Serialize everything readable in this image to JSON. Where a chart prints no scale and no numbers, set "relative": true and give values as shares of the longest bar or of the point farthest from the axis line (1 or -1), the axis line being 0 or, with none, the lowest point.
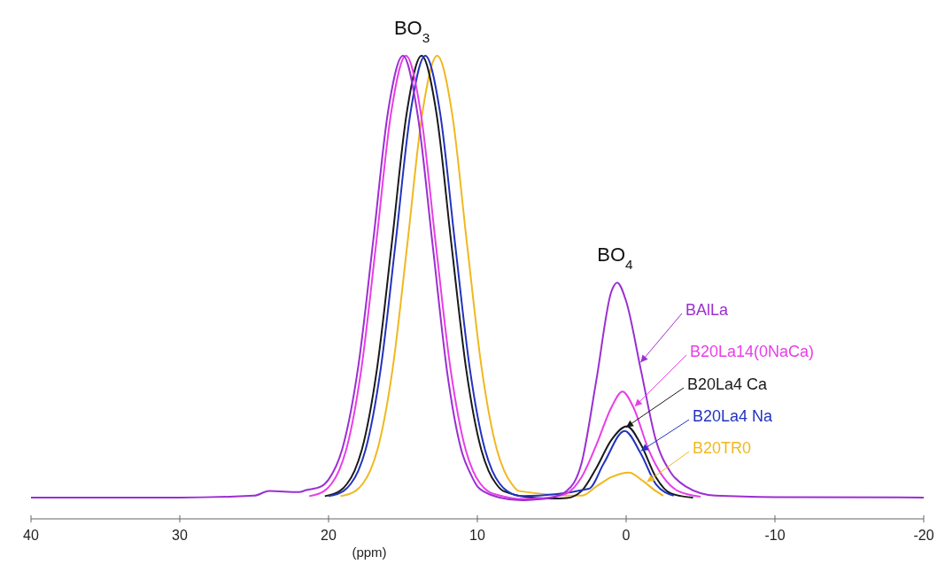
{
  "chart_data": {
    "type": "line",
    "relative": true,
    "xlabel": "(ppm)",
    "xlim": [
      40,
      -20
    ],
    "xticks": [
      40,
      30,
      20,
      10,
      0,
      -10,
      -20
    ],
    "grid": false,
    "legend": "right",
    "marker": "none",
    "line_style": "solid",
    "annotations": [
      {
        "text": "BO$_{3}$",
        "x": 14.4,
        "y": 1
      },
      {
        "text": "BO$_{4}$",
        "x": 0.75,
        "y": 0.51
      }
    ],
    "series": [
      {
        "name": "BAlLa",
        "color": "#9b2fd1",
        "x": [
          40,
          30,
          25,
          24,
          22,
          21.5,
          20.5,
          20,
          19,
          18,
          17,
          16,
          15,
          14,
          13,
          12,
          11,
          10.5,
          10,
          9.5,
          8.5,
          7,
          6,
          5,
          4,
          3,
          2,
          1,
          0.6,
          0,
          -1,
          -2,
          -3,
          -4,
          -6,
          -10,
          -20
        ],
        "values": [
          0.046,
          0.046,
          0.05,
          0.06,
          0.058,
          0.062,
          0.07,
          0.085,
          0.16,
          0.33,
          0.6,
          0.88,
          1.0,
          0.87,
          0.59,
          0.31,
          0.14,
          0.1,
          0.07,
          0.058,
          0.046,
          0.04,
          0.042,
          0.046,
          0.06,
          0.12,
          0.3,
          0.49,
          0.51,
          0.47,
          0.32,
          0.17,
          0.1,
          0.07,
          0.05,
          0.047,
          0.046
        ]
      },
      {
        "name": "B20La14(0NaCa)",
        "color": "#e83ee8",
        "x": [
          21.3,
          20.3,
          19.8,
          19.3,
          18.8,
          17.8,
          16.8,
          15.8,
          14.8,
          13.8,
          12.8,
          11.8,
          10.8,
          10.3,
          9.8,
          9.3,
          8.3,
          7,
          6,
          5,
          4,
          3,
          2,
          1,
          0.25,
          -0.5,
          -1.5,
          -2.5,
          -3.5,
          -5
        ],
        "values": [
          0.049,
          0.06,
          0.076,
          0.104,
          0.151,
          0.323,
          0.595,
          0.876,
          1.0,
          0.876,
          0.595,
          0.323,
          0.151,
          0.104,
          0.076,
          0.06,
          0.049,
          0.043,
          0.044,
          0.047,
          0.055,
          0.09,
          0.16,
          0.24,
          0.275,
          0.24,
          0.15,
          0.09,
          0.06,
          0.048
        ]
      },
      {
        "name": "B20La4 Ca",
        "color": "#1a1a1a",
        "x": [
          20.25,
          19.25,
          18.75,
          18.25,
          17.75,
          16.75,
          15.75,
          14.75,
          13.75,
          12.75,
          11.75,
          10.75,
          9.75,
          9.25,
          8.75,
          8.25,
          6,
          5,
          4,
          3,
          2,
          1,
          -0.05,
          -1,
          -2,
          -3,
          -4.5
        ],
        "values": [
          0.049,
          0.06,
          0.076,
          0.104,
          0.151,
          0.323,
          0.595,
          0.876,
          1.0,
          0.876,
          0.595,
          0.323,
          0.151,
          0.104,
          0.076,
          0.06,
          0.045,
          0.044,
          0.045,
          0.06,
          0.11,
          0.17,
          0.2,
          0.16,
          0.09,
          0.055,
          0.046
        ]
      },
      {
        "name": "B20La4 Na",
        "color": "#2233c0",
        "x": [
          20,
          19,
          18.5,
          18,
          17.5,
          16.5,
          15.5,
          14.5,
          13.5,
          12.5,
          11.5,
          10.5,
          9.5,
          9,
          8.5,
          8,
          7,
          2.5,
          1.5,
          0.1,
          -1,
          -2,
          -3.2
        ],
        "values": [
          0.049,
          0.06,
          0.076,
          0.104,
          0.151,
          0.323,
          0.595,
          0.876,
          1.0,
          0.876,
          0.595,
          0.323,
          0.151,
          0.104,
          0.076,
          0.06,
          0.049,
          0.065,
          0.12,
          0.19,
          0.14,
          0.075,
          0.05
        ]
      },
      {
        "name": "B20TR0",
        "color": "#f0b820",
        "x": [
          19.2,
          18.2,
          17.7,
          17.2,
          16.7,
          15.7,
          14.7,
          13.7,
          12.7,
          11.7,
          10.7,
          9.7,
          8.7,
          8.2,
          7.7,
          7.2,
          3,
          2,
          1,
          -0.2,
          -1,
          -2,
          -2.5
        ],
        "values": [
          0.049,
          0.06,
          0.076,
          0.104,
          0.151,
          0.323,
          0.595,
          0.876,
          1.0,
          0.876,
          0.595,
          0.323,
          0.151,
          0.104,
          0.076,
          0.06,
          0.05,
          0.07,
          0.09,
          0.1,
          0.085,
          0.06,
          0.05
        ]
      }
    ]
  }
}
